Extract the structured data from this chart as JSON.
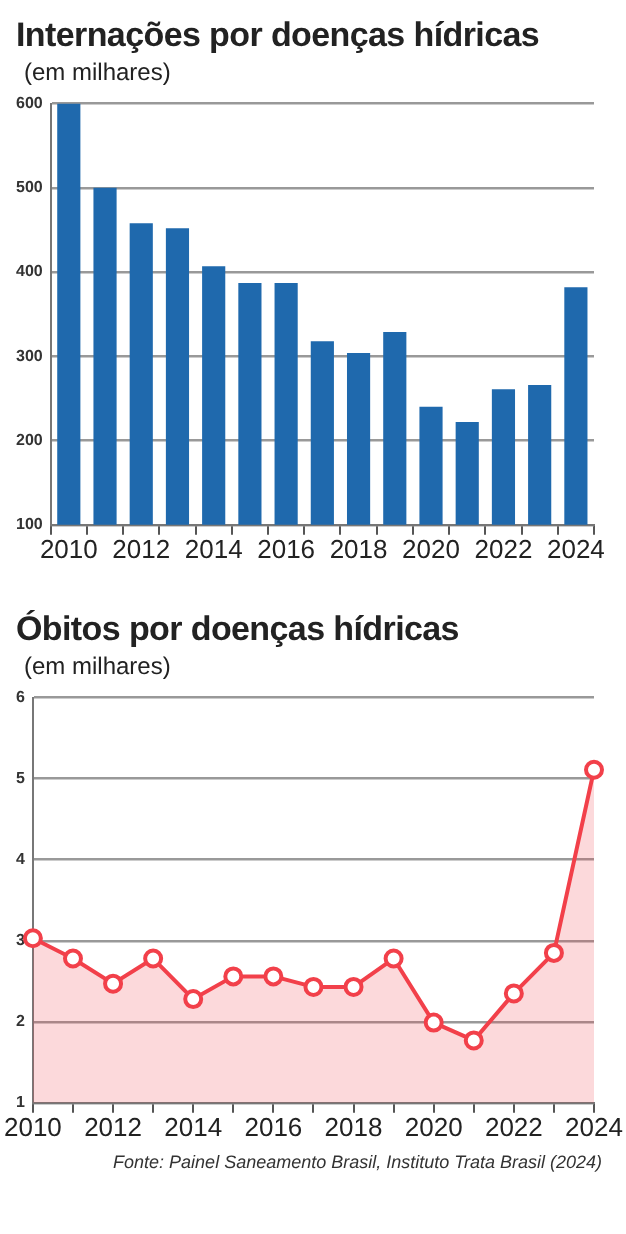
{
  "chart_data": [
    {
      "type": "bar",
      "title": "Internações por doenças hídricas",
      "subtitle": "(em milhares)",
      "categories": [
        "2010",
        null,
        "2012",
        null,
        "2014",
        null,
        "2016",
        null,
        "2018",
        null,
        "2020",
        null,
        "2022",
        null,
        "2024"
      ],
      "series": [
        {
          "color": "#1f69ad",
          "values": [
            600,
            500,
            458,
            452,
            407,
            387,
            387,
            318,
            304,
            329,
            240,
            222,
            261,
            266,
            382
          ]
        }
      ],
      "ylim": [
        100,
        600
      ],
      "yticks": [
        100,
        200,
        300,
        400,
        500,
        600
      ],
      "grid": "y",
      "legend": false
    },
    {
      "type": "area",
      "title": "Óbitos por doenças hídricas",
      "subtitle": "(em milhares)",
      "categories": [
        "2010",
        null,
        "2012",
        null,
        "2014",
        null,
        "2016",
        null,
        "2018",
        null,
        "2020",
        null,
        "2022",
        null,
        "2024"
      ],
      "series": [
        {
          "color": "#f2404a",
          "values": [
            3.03,
            2.78,
            2.47,
            2.78,
            2.28,
            2.56,
            2.56,
            2.43,
            2.43,
            2.78,
            1.99,
            1.77,
            2.35,
            2.85,
            5.11
          ]
        }
      ],
      "ylim": [
        1,
        6
      ],
      "yticks": [
        1,
        2,
        3,
        4,
        5,
        6
      ],
      "grid": "y",
      "legend": false,
      "marker": "circle",
      "annotations": [
        "Fonte: Painel Saneamento Brasil, Instituto Trata Brasil (2024)"
      ]
    }
  ]
}
